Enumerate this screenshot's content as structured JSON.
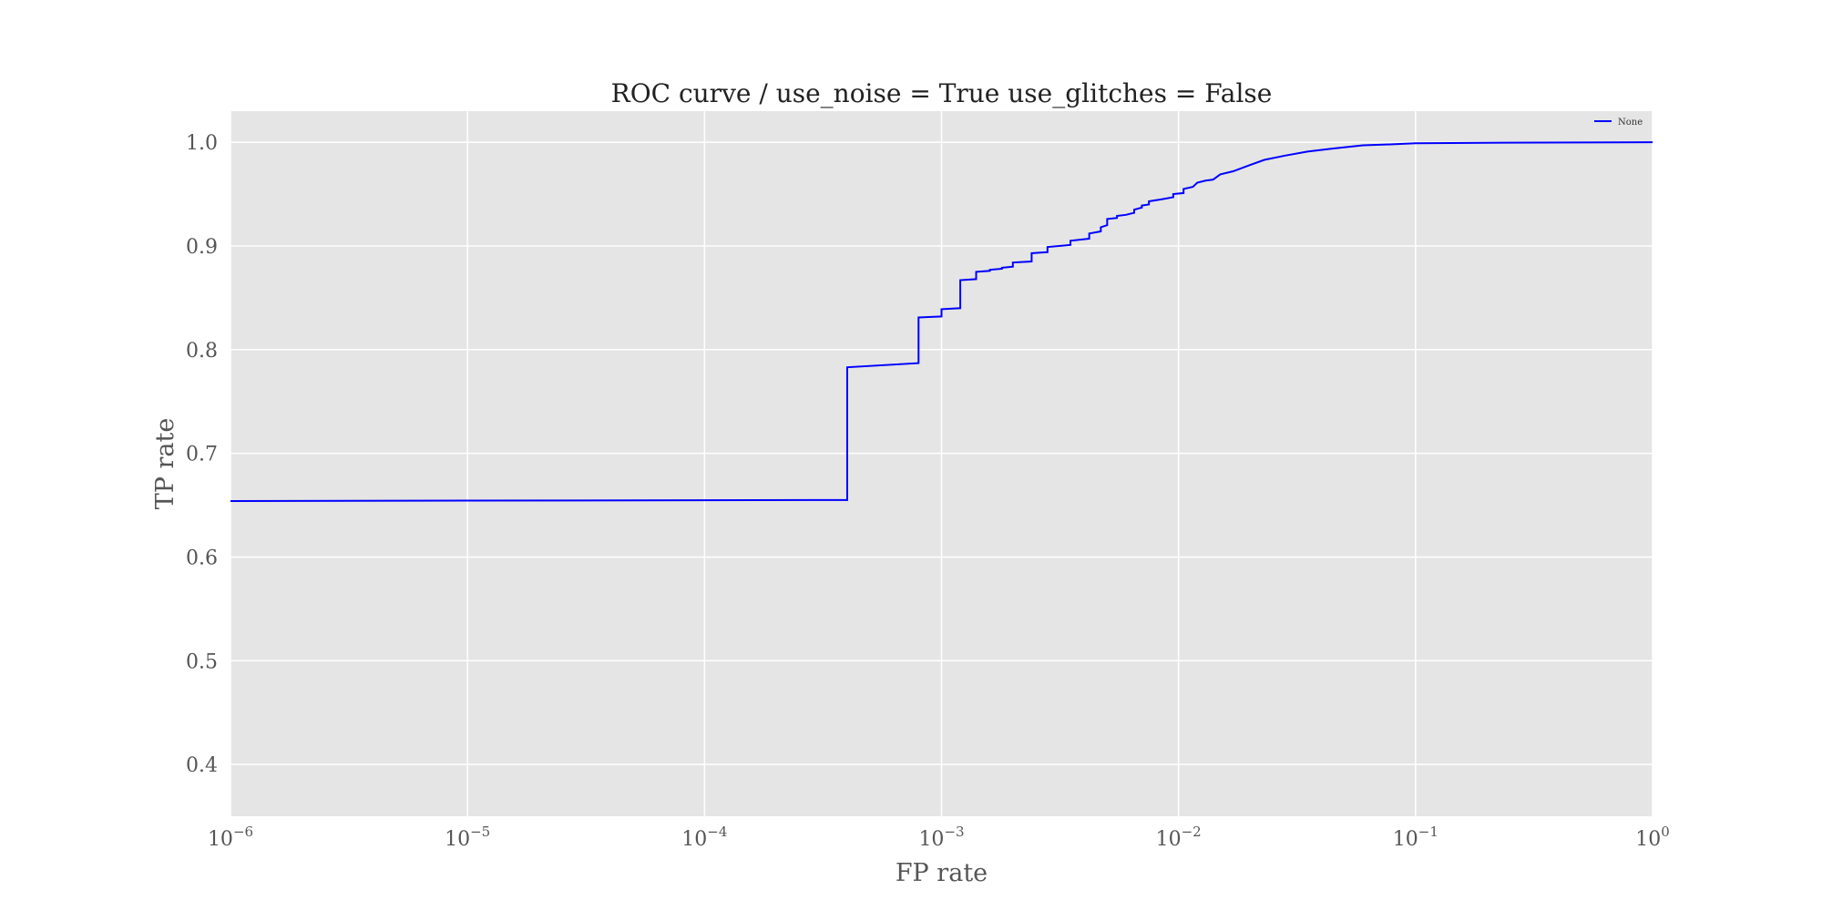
{
  "chart_data": {
    "type": "line",
    "title": "ROC curve / use_noise = True  use_glitches = False",
    "xlabel": "FP rate",
    "ylabel": "TP rate",
    "xscale": "log",
    "xlim": [
      1e-06,
      1
    ],
    "ylim": [
      0.35,
      1.03
    ],
    "grid": true,
    "legend_position": "top-right",
    "x_ticks": [
      {
        "base": "10",
        "exp": "−6",
        "value": 1e-06
      },
      {
        "base": "10",
        "exp": "−5",
        "value": 1e-05
      },
      {
        "base": "10",
        "exp": "−4",
        "value": 0.0001
      },
      {
        "base": "10",
        "exp": "−3",
        "value": 0.001
      },
      {
        "base": "10",
        "exp": "−2",
        "value": 0.01
      },
      {
        "base": "10",
        "exp": "−1",
        "value": 0.1
      },
      {
        "base": "10",
        "exp": "0",
        "value": 1
      }
    ],
    "y_ticks": [
      {
        "label": "0.4",
        "value": 0.4
      },
      {
        "label": "0.5",
        "value": 0.5
      },
      {
        "label": "0.6",
        "value": 0.6
      },
      {
        "label": "0.7",
        "value": 0.7
      },
      {
        "label": "0.8",
        "value": 0.8
      },
      {
        "label": "0.9",
        "value": 0.9
      },
      {
        "label": "1.0",
        "value": 1.0
      }
    ],
    "series": [
      {
        "name": "None",
        "color": "#0000ff",
        "points": [
          [
            1e-06,
            0.654
          ],
          [
            0.0004,
            0.655
          ],
          [
            0.0004,
            0.783
          ],
          [
            0.0008,
            0.787
          ],
          [
            0.0008,
            0.831
          ],
          [
            0.001,
            0.832
          ],
          [
            0.001,
            0.839
          ],
          [
            0.0012,
            0.84
          ],
          [
            0.0012,
            0.867
          ],
          [
            0.0014,
            0.868
          ],
          [
            0.0014,
            0.875
          ],
          [
            0.0016,
            0.876
          ],
          [
            0.0016,
            0.877
          ],
          [
            0.0018,
            0.878
          ],
          [
            0.0018,
            0.879
          ],
          [
            0.002,
            0.88
          ],
          [
            0.002,
            0.884
          ],
          [
            0.0024,
            0.885
          ],
          [
            0.0024,
            0.893
          ],
          [
            0.0028,
            0.894
          ],
          [
            0.0028,
            0.899
          ],
          [
            0.0035,
            0.901
          ],
          [
            0.0035,
            0.905
          ],
          [
            0.0042,
            0.907
          ],
          [
            0.0042,
            0.912
          ],
          [
            0.0047,
            0.914
          ],
          [
            0.0047,
            0.918
          ],
          [
            0.005,
            0.92
          ],
          [
            0.005,
            0.926
          ],
          [
            0.0055,
            0.927
          ],
          [
            0.0055,
            0.929
          ],
          [
            0.006,
            0.93
          ],
          [
            0.0065,
            0.932
          ],
          [
            0.0065,
            0.935
          ],
          [
            0.007,
            0.937
          ],
          [
            0.007,
            0.939
          ],
          [
            0.0075,
            0.94
          ],
          [
            0.0075,
            0.943
          ],
          [
            0.0085,
            0.945
          ],
          [
            0.0095,
            0.947
          ],
          [
            0.0095,
            0.95
          ],
          [
            0.0105,
            0.951
          ],
          [
            0.0105,
            0.955
          ],
          [
            0.0115,
            0.957
          ],
          [
            0.012,
            0.961
          ],
          [
            0.013,
            0.963
          ],
          [
            0.014,
            0.964
          ],
          [
            0.015,
            0.969
          ],
          [
            0.017,
            0.972
          ],
          [
            0.02,
            0.978
          ],
          [
            0.023,
            0.983
          ],
          [
            0.028,
            0.987
          ],
          [
            0.035,
            0.991
          ],
          [
            0.045,
            0.994
          ],
          [
            0.06,
            0.997
          ],
          [
            0.08,
            0.998
          ],
          [
            0.1,
            0.999
          ],
          [
            0.2,
            0.9995
          ],
          [
            0.5,
            0.9998
          ],
          [
            1,
            1.0
          ]
        ]
      }
    ]
  },
  "colors": {
    "plot_background": "#e5e5e5",
    "grid": "#ffffff",
    "series": "#0000ff"
  }
}
